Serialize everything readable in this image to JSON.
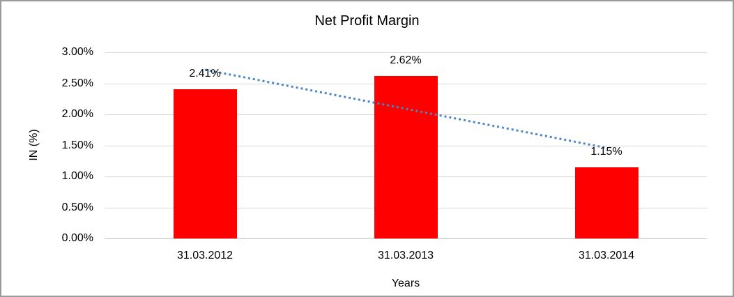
{
  "chart_data": {
    "type": "bar",
    "title": "Net Profit Margin",
    "xlabel": "Years",
    "ylabel": "IN (%)",
    "categories": [
      "31.03.2012",
      "31.03.2013",
      "31.03.2014"
    ],
    "values": [
      2.41,
      2.62,
      1.15
    ],
    "data_labels": [
      "2.41%",
      "2.62%",
      "1.15%"
    ],
    "y_ticks": [
      {
        "value": 0.0,
        "label": "0.00%"
      },
      {
        "value": 0.5,
        "label": "0.50%"
      },
      {
        "value": 1.0,
        "label": "1.00%"
      },
      {
        "value": 1.5,
        "label": "1.50%"
      },
      {
        "value": 2.0,
        "label": "2.00%"
      },
      {
        "value": 2.5,
        "label": "2.50%"
      },
      {
        "value": 3.0,
        "label": "3.00%"
      }
    ],
    "ylim": [
      0,
      3
    ],
    "grid": true,
    "legend": false,
    "bar_color": "#ff0000",
    "trendline": {
      "type": "linear",
      "style": "dotted",
      "color": "#4a86c6",
      "start_value": 2.72,
      "end_value": 1.46
    }
  }
}
